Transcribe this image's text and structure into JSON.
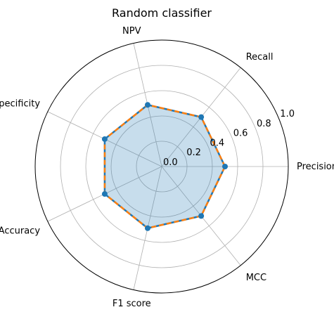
{
  "chart_data": {
    "type": "radar",
    "title": "Random classifier",
    "categories": [
      "Precision",
      "Recall",
      "NPV",
      "Specificity",
      "Accuracy",
      "F1 score",
      "MCC"
    ],
    "series": [
      {
        "values": [
          0.5,
          0.5,
          0.5,
          0.5,
          0.5,
          0.5,
          0.5
        ],
        "line_color": "#1f77b4",
        "fill_color": "#1f77b4",
        "fill_alpha": 0.25
      },
      {
        "values": [
          0.5,
          0.5,
          0.5,
          0.5,
          0.5,
          0.5,
          0.5
        ],
        "line_color": "#ff7f0e",
        "line_style": "dashed"
      }
    ],
    "rlim": [
      0,
      1.0
    ],
    "rticks": [
      "0.0",
      "0.2",
      "0.4",
      "0.6",
      "0.8",
      "1.0"
    ],
    "grid": true
  }
}
